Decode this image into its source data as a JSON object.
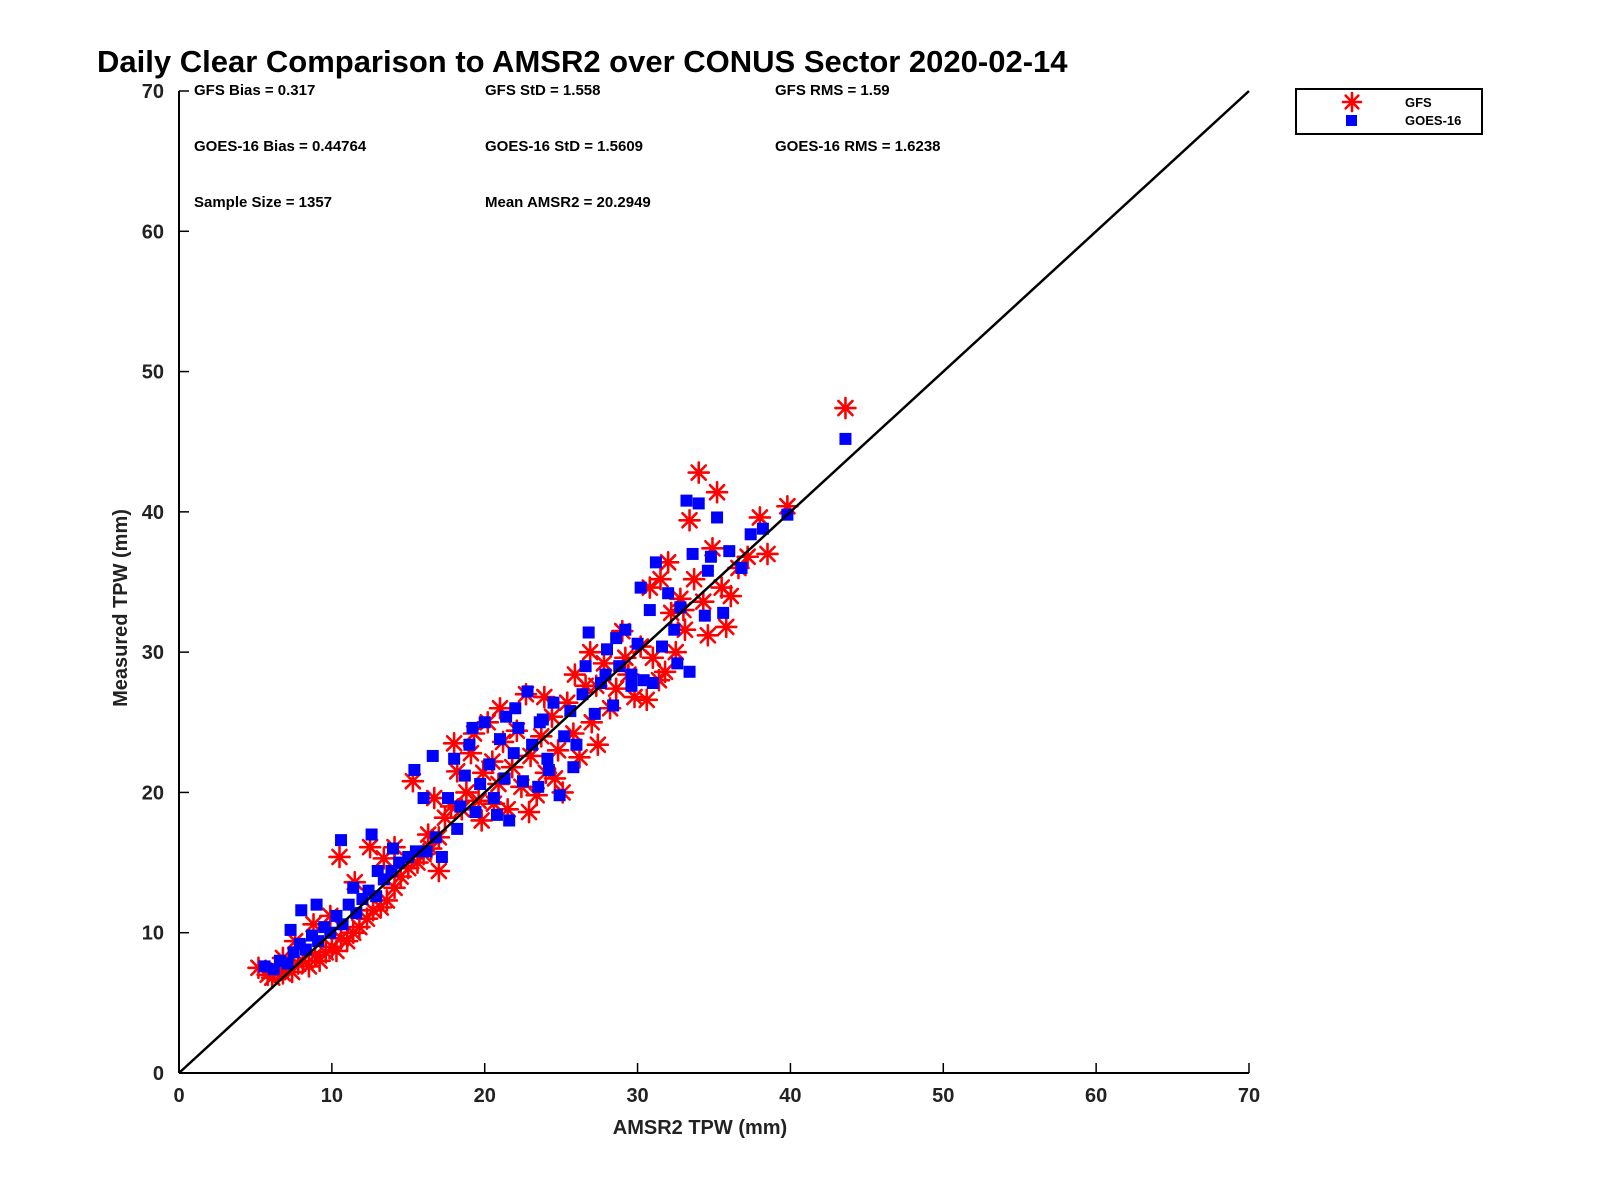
{
  "chart_data": {
    "type": "scatter",
    "title": "Daily Clear Comparison to AMSR2 over CONUS Sector 2020-02-14",
    "xlabel": "AMSR2 TPW (mm)",
    "ylabel": "Measured TPW (mm)",
    "xlim": [
      0,
      70
    ],
    "ylim": [
      0,
      70
    ],
    "xticks": [
      "0",
      "10",
      "20",
      "30",
      "40",
      "50",
      "60",
      "70"
    ],
    "yticks": [
      "0",
      "10",
      "20",
      "30",
      "40",
      "50",
      "60",
      "70"
    ],
    "legend_position": "outside-top-right",
    "grid": false,
    "reference_line": {
      "from": [
        0,
        0
      ],
      "to": [
        70,
        70
      ],
      "color": "#000000"
    },
    "stats": [
      [
        "GFS Bias = 0.317",
        "GFS StD = 1.558",
        "GFS RMS = 1.59"
      ],
      [
        "GOES-16 Bias = 0.44764",
        "GOES-16 StD = 1.5609",
        "GOES-16 RMS = 1.6238"
      ],
      [
        "Sample Size = 1357",
        "Mean AMSR2 = 20.2949"
      ]
    ],
    "series": [
      {
        "name": "GFS",
        "marker": "asterisk",
        "color": "#ff0000",
        "points": [
          [
            5.2,
            7.5
          ],
          [
            5.8,
            7.0
          ],
          [
            6.1,
            6.8
          ],
          [
            6.5,
            7.3
          ],
          [
            6.8,
            7.1
          ],
          [
            7.0,
            7.6
          ],
          [
            7.4,
            7.2
          ],
          [
            7.8,
            7.8
          ],
          [
            8.1,
            8.0
          ],
          [
            8.5,
            7.6
          ],
          [
            8.9,
            8.4
          ],
          [
            9.2,
            8.0
          ],
          [
            9.6,
            8.6
          ],
          [
            10.0,
            9.0
          ],
          [
            10.3,
            8.7
          ],
          [
            10.6,
            9.6
          ],
          [
            11.0,
            9.4
          ],
          [
            11.4,
            10.0
          ],
          [
            11.8,
            10.4
          ],
          [
            12.3,
            11.0
          ],
          [
            12.7,
            11.6
          ],
          [
            13.2,
            11.8
          ],
          [
            13.6,
            12.3
          ],
          [
            14.1,
            13.2
          ],
          [
            14.5,
            14.0
          ],
          [
            15.0,
            14.6
          ],
          [
            15.6,
            15.0
          ],
          [
            16.0,
            15.6
          ],
          [
            16.5,
            16.0
          ],
          [
            17.0,
            16.8
          ],
          [
            6.8,
            8.2
          ],
          [
            7.6,
            9.4
          ],
          [
            8.8,
            10.6
          ],
          [
            9.9,
            11.2
          ],
          [
            10.5,
            15.4
          ],
          [
            11.5,
            13.6
          ],
          [
            12.5,
            16.1
          ],
          [
            13.4,
            15.3
          ],
          [
            14.1,
            16.1
          ],
          [
            15.3,
            20.8
          ],
          [
            16.3,
            17.0
          ],
          [
            17.0,
            14.4
          ],
          [
            16.7,
            19.6
          ],
          [
            17.4,
            18.2
          ],
          [
            17.8,
            19.0
          ],
          [
            18.2,
            21.5
          ],
          [
            18.5,
            18.8
          ],
          [
            18.8,
            20.0
          ],
          [
            19.1,
            22.8
          ],
          [
            19.3,
            24.2
          ],
          [
            19.6,
            19.4
          ],
          [
            19.9,
            21.4
          ],
          [
            20.2,
            25.0
          ],
          [
            20.5,
            22.2
          ],
          [
            20.9,
            20.6
          ],
          [
            21.2,
            23.6
          ],
          [
            21.5,
            18.8
          ],
          [
            21.8,
            21.8
          ],
          [
            22.1,
            24.4
          ],
          [
            22.4,
            20.4
          ],
          [
            22.7,
            27.0
          ],
          [
            23.0,
            22.6
          ],
          [
            23.4,
            19.8
          ],
          [
            23.7,
            24.0
          ],
          [
            24.0,
            21.4
          ],
          [
            24.4,
            25.4
          ],
          [
            24.8,
            23.0
          ],
          [
            25.1,
            20.0
          ],
          [
            25.4,
            26.4
          ],
          [
            25.8,
            24.2
          ],
          [
            26.2,
            22.5
          ],
          [
            26.6,
            27.6
          ],
          [
            27.0,
            25.0
          ],
          [
            27.4,
            23.4
          ],
          [
            27.8,
            29.2
          ],
          [
            28.2,
            26.0
          ],
          [
            28.6,
            27.4
          ],
          [
            29.0,
            31.5
          ],
          [
            29.4,
            28.4
          ],
          [
            29.8,
            26.8
          ],
          [
            30.2,
            30.4
          ],
          [
            30.6,
            26.6
          ],
          [
            31.0,
            29.6
          ],
          [
            31.4,
            28.0
          ],
          [
            31.8,
            28.6
          ],
          [
            32.2,
            32.8
          ],
          [
            32.5,
            30.0
          ],
          [
            32.8,
            33.8
          ],
          [
            33.1,
            31.6
          ],
          [
            33.4,
            39.4
          ],
          [
            33.7,
            35.2
          ],
          [
            34.0,
            42.8
          ],
          [
            34.3,
            33.6
          ],
          [
            34.6,
            31.2
          ],
          [
            34.9,
            37.4
          ],
          [
            35.2,
            41.4
          ],
          [
            35.5,
            34.6
          ],
          [
            35.8,
            31.8
          ],
          [
            36.1,
            34.0
          ],
          [
            37.2,
            36.8
          ],
          [
            38.0,
            39.6
          ],
          [
            38.5,
            37.0
          ],
          [
            39.8,
            40.4
          ],
          [
            43.6,
            47.4
          ],
          [
            31.5,
            35.2
          ],
          [
            32.0,
            36.4
          ],
          [
            33.0,
            33.0
          ],
          [
            30.8,
            34.6
          ],
          [
            36.6,
            36.0
          ],
          [
            29.2,
            29.6
          ],
          [
            24.6,
            21.0
          ],
          [
            25.9,
            28.4
          ],
          [
            27.3,
            27.6
          ],
          [
            22.9,
            18.6
          ],
          [
            21.0,
            26.0
          ],
          [
            18.0,
            23.5
          ],
          [
            19.8,
            18.0
          ],
          [
            23.9,
            26.8
          ],
          [
            26.9,
            30.0
          ],
          [
            20.6,
            19.2
          ]
        ]
      },
      {
        "name": "GOES-16",
        "marker": "square",
        "color": "#0000ff",
        "points": [
          [
            5.6,
            7.6
          ],
          [
            6.2,
            7.4
          ],
          [
            6.6,
            8.0
          ],
          [
            7.1,
            7.8
          ],
          [
            7.5,
            8.6
          ],
          [
            7.9,
            9.2
          ],
          [
            8.3,
            8.8
          ],
          [
            8.7,
            9.8
          ],
          [
            9.1,
            9.4
          ],
          [
            9.5,
            10.4
          ],
          [
            9.9,
            10.0
          ],
          [
            10.3,
            11.2
          ],
          [
            10.7,
            10.6
          ],
          [
            11.1,
            12.0
          ],
          [
            11.6,
            11.4
          ],
          [
            12.0,
            12.4
          ],
          [
            12.4,
            13.0
          ],
          [
            12.9,
            12.6
          ],
          [
            13.4,
            13.8
          ],
          [
            13.9,
            14.4
          ],
          [
            14.4,
            15.0
          ],
          [
            15.0,
            15.4
          ],
          [
            15.5,
            15.8
          ],
          [
            16.2,
            15.8
          ],
          [
            16.8,
            16.8
          ],
          [
            7.3,
            10.2
          ],
          [
            8.0,
            11.6
          ],
          [
            9.0,
            12.0
          ],
          [
            10.6,
            16.6
          ],
          [
            11.4,
            13.2
          ],
          [
            12.6,
            17.0
          ],
          [
            13.0,
            14.4
          ],
          [
            14.0,
            16.0
          ],
          [
            15.4,
            21.6
          ],
          [
            16.6,
            22.6
          ],
          [
            17.2,
            15.4
          ],
          [
            17.6,
            19.6
          ],
          [
            18.0,
            22.4
          ],
          [
            18.4,
            19.0
          ],
          [
            18.7,
            21.2
          ],
          [
            19.0,
            23.4
          ],
          [
            19.4,
            18.6
          ],
          [
            19.7,
            20.6
          ],
          [
            20.0,
            25.0
          ],
          [
            20.3,
            22.0
          ],
          [
            20.6,
            19.6
          ],
          [
            21.0,
            23.8
          ],
          [
            21.3,
            21.0
          ],
          [
            21.6,
            18.0
          ],
          [
            21.9,
            22.8
          ],
          [
            22.2,
            24.6
          ],
          [
            22.5,
            20.8
          ],
          [
            22.8,
            27.2
          ],
          [
            23.1,
            23.4
          ],
          [
            23.5,
            20.4
          ],
          [
            23.8,
            25.2
          ],
          [
            24.1,
            22.4
          ],
          [
            24.5,
            26.4
          ],
          [
            24.9,
            19.8
          ],
          [
            25.2,
            24.0
          ],
          [
            25.6,
            25.8
          ],
          [
            26.0,
            23.4
          ],
          [
            26.4,
            27.0
          ],
          [
            26.8,
            31.4
          ],
          [
            27.2,
            25.6
          ],
          [
            27.6,
            27.8
          ],
          [
            28.0,
            30.2
          ],
          [
            28.4,
            26.2
          ],
          [
            28.8,
            29.0
          ],
          [
            29.2,
            31.6
          ],
          [
            29.6,
            27.6
          ],
          [
            30.0,
            30.6
          ],
          [
            30.4,
            28.0
          ],
          [
            30.8,
            33.0
          ],
          [
            31.2,
            36.4
          ],
          [
            31.6,
            30.4
          ],
          [
            32.0,
            34.2
          ],
          [
            32.4,
            31.6
          ],
          [
            32.8,
            33.2
          ],
          [
            33.2,
            40.8
          ],
          [
            33.6,
            37.0
          ],
          [
            34.0,
            40.6
          ],
          [
            34.4,
            32.6
          ],
          [
            34.8,
            36.8
          ],
          [
            35.2,
            39.6
          ],
          [
            35.6,
            32.8
          ],
          [
            36.0,
            37.2
          ],
          [
            36.8,
            36.0
          ],
          [
            37.4,
            38.4
          ],
          [
            38.2,
            38.8
          ],
          [
            39.8,
            39.8
          ],
          [
            43.6,
            45.2
          ],
          [
            31.0,
            27.8
          ],
          [
            32.6,
            29.2
          ],
          [
            33.4,
            28.6
          ],
          [
            30.2,
            34.6
          ],
          [
            34.6,
            35.8
          ],
          [
            29.6,
            28.4
          ],
          [
            24.2,
            21.6
          ],
          [
            26.6,
            29.0
          ],
          [
            22.0,
            26.0
          ],
          [
            19.2,
            24.6
          ],
          [
            20.8,
            18.4
          ],
          [
            23.6,
            25.0
          ],
          [
            27.9,
            28.4
          ],
          [
            21.4,
            25.4
          ],
          [
            18.2,
            17.4
          ],
          [
            16.0,
            19.6
          ],
          [
            25.8,
            21.8
          ],
          [
            28.6,
            31.0
          ]
        ]
      }
    ]
  }
}
